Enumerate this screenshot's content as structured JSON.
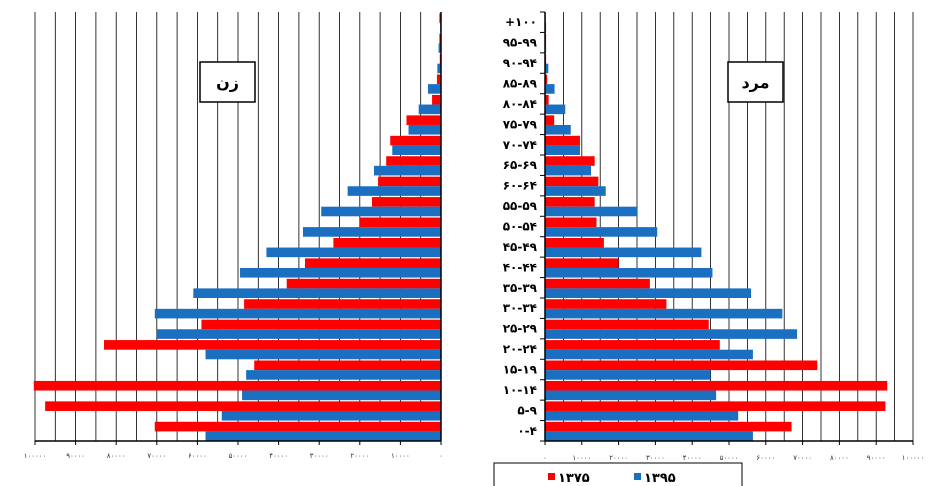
{
  "chart_data": {
    "type": "bar",
    "orientation": "horizontal",
    "chart_kind": "population pyramid",
    "categories": [
      "۰-۴",
      "۵-۹",
      "۱۰-۱۴",
      "۱۵-۱۹",
      "۲۰-۲۴",
      "۲۵-۲۹",
      "۳۰-۳۴",
      "۳۵-۳۹",
      "۴۰-۴۴",
      "۴۵-۴۹",
      "۵۰-۵۴",
      "۵۵-۵۹",
      "۶۰-۶۴",
      "۶۵-۶۹",
      "۷۰-۷۴",
      "۷۵-۷۹",
      "۸۰-۸۴",
      "۸۵-۸۹",
      "۹۰-۹۴",
      "۹۵-۹۹",
      "+۱۰۰"
    ],
    "legend": {
      "position": "bottom-right",
      "entries": [
        {
          "label": "۱۳۷۵",
          "color": "#ff0000"
        },
        {
          "label": "۱۳۹۵",
          "color": "#1a6fc1"
        }
      ]
    },
    "grid": true,
    "panels": [
      {
        "title": "زن",
        "direction": "leftward",
        "xlim": [
          0,
          100000
        ],
        "xticks": [
          0,
          10000,
          20000,
          30000,
          40000,
          50000,
          60000,
          70000,
          80000,
          90000,
          100000
        ],
        "tick_labels": [
          "۰",
          "۱۰۰۰۰",
          "۲۰۰۰۰",
          "۳۰۰۰۰",
          "۴۰۰۰۰",
          "۵۰۰۰۰",
          "۶۰۰۰۰",
          "۷۰۰۰۰",
          "۸۰۰۰۰",
          "۹۰۰۰۰",
          "۱۰۰۰۰۰"
        ],
        "series": [
          {
            "name": "۱۳۷۵",
            "color": "#ff0000",
            "values": [
              70500,
              97500,
              100300,
              46000,
              83000,
              59000,
              48500,
              38000,
              33500,
              26500,
              20000,
              17000,
              15500,
              13500,
              12500,
              8500,
              2200,
              1000,
              300,
              400,
              400
            ]
          },
          {
            "name": "۱۳۹۵",
            "color": "#1a6fc1",
            "values": [
              58000,
              54000,
              49000,
              48000,
              58000,
              70000,
              70500,
              61000,
              49500,
              43000,
              34000,
              29500,
              23000,
              16500,
              12000,
              8000,
              5500,
              3200,
              900,
              600,
              200
            ]
          }
        ]
      },
      {
        "title": "مرد",
        "direction": "rightward",
        "xlim": [
          0,
          100000
        ],
        "xticks": [
          0,
          10000,
          20000,
          30000,
          40000,
          50000,
          60000,
          70000,
          80000,
          90000,
          100000
        ],
        "tick_labels": [
          "۰",
          "۱۰۰۰۰",
          "۲۰۰۰۰",
          "۳۰۰۰۰",
          "۴۰۰۰۰",
          "۵۰۰۰۰",
          "۶۰۰۰۰",
          "۷۰۰۰۰",
          "۸۰۰۰۰",
          "۹۰۰۰۰",
          "۱۰۰۰۰۰"
        ],
        "series": [
          {
            "name": "۱۳۷۵",
            "color": "#ff0000",
            "values": [
              67000,
              92500,
              93000,
              74000,
              47500,
              44500,
              33000,
              28500,
              20000,
              16000,
              14000,
              13500,
              14500,
              13500,
              9500,
              2500,
              1000,
              600,
              300,
              300,
              200
            ]
          },
          {
            "name": "۱۳۹۵",
            "color": "#1a6fc1",
            "values": [
              56500,
              52500,
              46500,
              45000,
              56500,
              68500,
              64500,
              56000,
              45500,
              42500,
              30500,
              25000,
              16500,
              12500,
              9500,
              7000,
              5500,
              2600,
              900,
              300,
              300
            ]
          }
        ]
      }
    ]
  }
}
